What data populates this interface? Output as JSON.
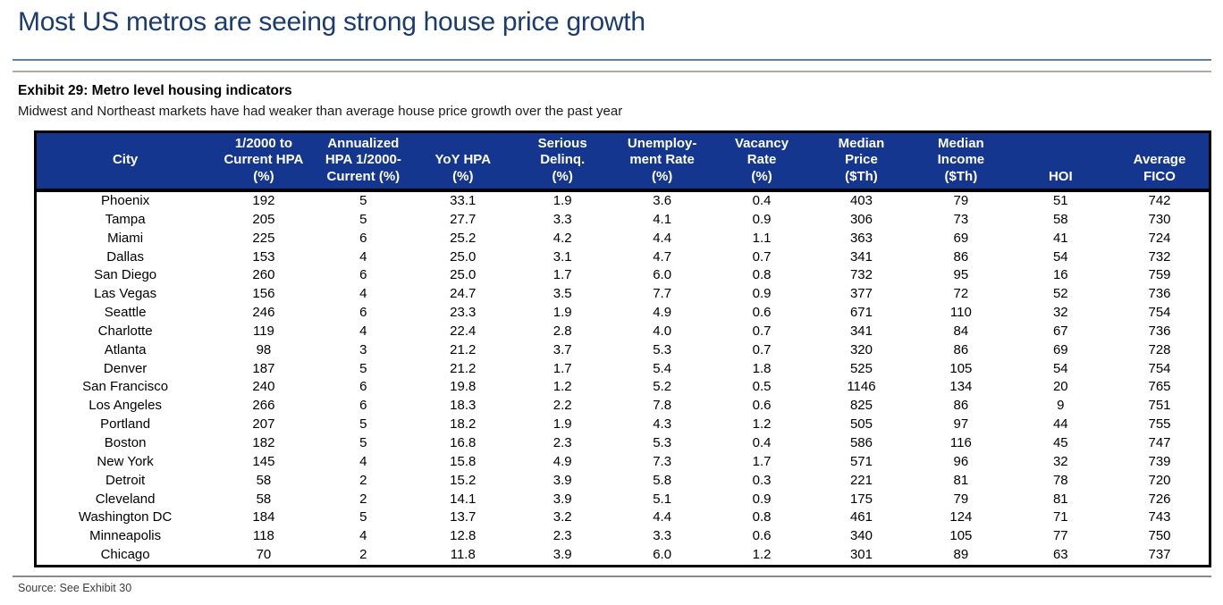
{
  "report": {
    "title": "Most US metros are seeing strong house price growth",
    "exhibit_title": "Exhibit 29: Metro level housing indicators",
    "exhibit_subtitle": "Midwest and Northeast markets have had weaker than average house price growth over the past year",
    "source": "Source: See Exhibit 30"
  },
  "colors": {
    "title_text": "#1B3C6F",
    "table_header_bg": "#14368E",
    "table_header_text": "#FFFFFF",
    "table_border": "#000000",
    "divider_blue": "#64819C",
    "divider_gray": "#ABABAB"
  },
  "chart_data": {
    "type": "table",
    "title": "Exhibit 29: Metro level housing indicators",
    "columns": [
      {
        "key": "city",
        "lines": [
          "City"
        ],
        "valign": "middle"
      },
      {
        "key": "hpa_since_2000",
        "lines": [
          "1/2000 to",
          "Current HPA",
          "(%)"
        ]
      },
      {
        "key": "annualized_hpa",
        "lines": [
          "Annualized",
          "HPA 1/2000-",
          "Current (%)"
        ]
      },
      {
        "key": "yoy_hpa",
        "lines": [
          "YoY HPA",
          "(%)"
        ]
      },
      {
        "key": "serious_delinq",
        "lines": [
          "Serious",
          "Delinq.",
          "(%)"
        ]
      },
      {
        "key": "unemployment_rate",
        "lines": [
          "Unemploy-",
          "ment Rate",
          "(%)"
        ]
      },
      {
        "key": "vacancy_rate",
        "lines": [
          "Vacancy",
          "Rate",
          "(%)"
        ]
      },
      {
        "key": "median_price",
        "lines": [
          "Median",
          "Price",
          "($Th)"
        ]
      },
      {
        "key": "median_income",
        "lines": [
          "Median",
          "Income",
          "($Th)"
        ]
      },
      {
        "key": "hoi",
        "lines": [
          "HOI"
        ]
      },
      {
        "key": "avg_fico",
        "lines": [
          "Average",
          "FICO"
        ]
      }
    ],
    "rows": [
      [
        "Phoenix",
        "192",
        "5",
        "33.1",
        "1.9",
        "3.6",
        "0.4",
        "403",
        "79",
        "51",
        "742"
      ],
      [
        "Tampa",
        "205",
        "5",
        "27.7",
        "3.3",
        "4.1",
        "0.9",
        "306",
        "73",
        "58",
        "730"
      ],
      [
        "Miami",
        "225",
        "6",
        "25.2",
        "4.2",
        "4.4",
        "1.1",
        "363",
        "69",
        "41",
        "724"
      ],
      [
        "Dallas",
        "153",
        "4",
        "25.0",
        "3.1",
        "4.7",
        "0.7",
        "341",
        "86",
        "54",
        "732"
      ],
      [
        "San Diego",
        "260",
        "6",
        "25.0",
        "1.7",
        "6.0",
        "0.8",
        "732",
        "95",
        "16",
        "759"
      ],
      [
        "Las Vegas",
        "156",
        "4",
        "24.7",
        "3.5",
        "7.7",
        "0.9",
        "377",
        "72",
        "52",
        "736"
      ],
      [
        "Seattle",
        "246",
        "6",
        "23.3",
        "1.9",
        "4.9",
        "0.6",
        "671",
        "110",
        "32",
        "754"
      ],
      [
        "Charlotte",
        "119",
        "4",
        "22.4",
        "2.8",
        "4.0",
        "0.7",
        "341",
        "84",
        "67",
        "736"
      ],
      [
        "Atlanta",
        "98",
        "3",
        "21.2",
        "3.7",
        "5.3",
        "0.7",
        "320",
        "86",
        "69",
        "728"
      ],
      [
        "Denver",
        "187",
        "5",
        "21.2",
        "1.7",
        "5.4",
        "1.8",
        "525",
        "105",
        "54",
        "754"
      ],
      [
        "San Francisco",
        "240",
        "6",
        "19.8",
        "1.2",
        "5.2",
        "0.5",
        "1146",
        "134",
        "20",
        "765"
      ],
      [
        "Los Angeles",
        "266",
        "6",
        "18.3",
        "2.2",
        "7.8",
        "0.6",
        "825",
        "86",
        "9",
        "751"
      ],
      [
        "Portland",
        "207",
        "5",
        "18.2",
        "1.9",
        "4.3",
        "1.2",
        "505",
        "97",
        "44",
        "755"
      ],
      [
        "Boston",
        "182",
        "5",
        "16.8",
        "2.3",
        "5.3",
        "0.4",
        "586",
        "116",
        "45",
        "747"
      ],
      [
        "New York",
        "145",
        "4",
        "15.8",
        "4.9",
        "7.3",
        "1.7",
        "571",
        "96",
        "32",
        "739"
      ],
      [
        "Detroit",
        "58",
        "2",
        "15.2",
        "3.9",
        "5.8",
        "0.3",
        "221",
        "81",
        "78",
        "720"
      ],
      [
        "Cleveland",
        "58",
        "2",
        "14.1",
        "3.9",
        "5.1",
        "0.9",
        "175",
        "79",
        "81",
        "726"
      ],
      [
        "Washington DC",
        "184",
        "5",
        "13.7",
        "3.2",
        "4.4",
        "0.8",
        "461",
        "124",
        "71",
        "743"
      ],
      [
        "Minneapolis",
        "118",
        "4",
        "12.8",
        "2.3",
        "3.3",
        "0.6",
        "340",
        "105",
        "77",
        "750"
      ],
      [
        "Chicago",
        "70",
        "2",
        "11.8",
        "3.9",
        "6.0",
        "1.2",
        "301",
        "89",
        "63",
        "737"
      ]
    ],
    "layout": {
      "first_column_width_pct": 15.2,
      "data_column_width_pct": 8.48,
      "header_align": "center",
      "cell_align": "center"
    }
  }
}
